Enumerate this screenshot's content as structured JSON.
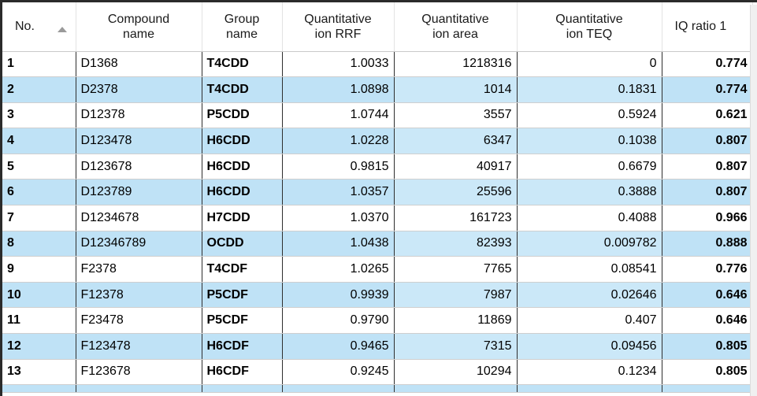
{
  "table": {
    "columns": [
      {
        "label": "No."
      },
      {
        "label": "Compound\nname"
      },
      {
        "label": "Group\nname"
      },
      {
        "label": "Quantitative\nion RRF"
      },
      {
        "label": "Quantitative\nion area"
      },
      {
        "label": "Quantitative\nion TEQ"
      },
      {
        "label": "IQ ratio 1"
      }
    ],
    "sort": {
      "column": "No.",
      "direction": "ascending"
    },
    "rows": [
      {
        "no": "1",
        "compound": "D1368",
        "group": "T4CDD",
        "rrf": "1.0033",
        "area": "1218316",
        "teq": "0",
        "iq": "0.774"
      },
      {
        "no": "2",
        "compound": "D2378",
        "group": "T4CDD",
        "rrf": "1.0898",
        "area": "1014",
        "teq": "0.1831",
        "iq": "0.774"
      },
      {
        "no": "3",
        "compound": "D12378",
        "group": "P5CDD",
        "rrf": "1.0744",
        "area": "3557",
        "teq": "0.5924",
        "iq": "0.621"
      },
      {
        "no": "4",
        "compound": "D123478",
        "group": "H6CDD",
        "rrf": "1.0228",
        "area": "6347",
        "teq": "0.1038",
        "iq": "0.807"
      },
      {
        "no": "5",
        "compound": "D123678",
        "group": "H6CDD",
        "rrf": "0.9815",
        "area": "40917",
        "teq": "0.6679",
        "iq": "0.807"
      },
      {
        "no": "6",
        "compound": "D123789",
        "group": "H6CDD",
        "rrf": "1.0357",
        "area": "25596",
        "teq": "0.3888",
        "iq": "0.807"
      },
      {
        "no": "7",
        "compound": "D1234678",
        "group": "H7CDD",
        "rrf": "1.0370",
        "area": "161723",
        "teq": "0.4088",
        "iq": "0.966"
      },
      {
        "no": "8",
        "compound": "D12346789",
        "group": "OCDD",
        "rrf": "1.0438",
        "area": "82393",
        "teq": "0.009782",
        "iq": "0.888"
      },
      {
        "no": "9",
        "compound": "F2378",
        "group": "T4CDF",
        "rrf": "1.0265",
        "area": "7765",
        "teq": "0.08541",
        "iq": "0.776"
      },
      {
        "no": "10",
        "compound": "F12378",
        "group": "P5CDF",
        "rrf": "0.9939",
        "area": "7987",
        "teq": "0.02646",
        "iq": "0.646"
      },
      {
        "no": "11",
        "compound": "F23478",
        "group": "P5CDF",
        "rrf": "0.9790",
        "area": "11869",
        "teq": "0.407",
        "iq": "0.646"
      },
      {
        "no": "12",
        "compound": "F123478",
        "group": "H6CDF",
        "rrf": "0.9465",
        "area": "7315",
        "teq": "0.09456",
        "iq": "0.805"
      },
      {
        "no": "13",
        "compound": "F123678",
        "group": "H6CDF",
        "rrf": "0.9245",
        "area": "10294",
        "teq": "0.1234",
        "iq": "0.805"
      }
    ]
  },
  "colors": {
    "row_highlight": "#bfe2f6",
    "row_default": "#ffffff"
  }
}
